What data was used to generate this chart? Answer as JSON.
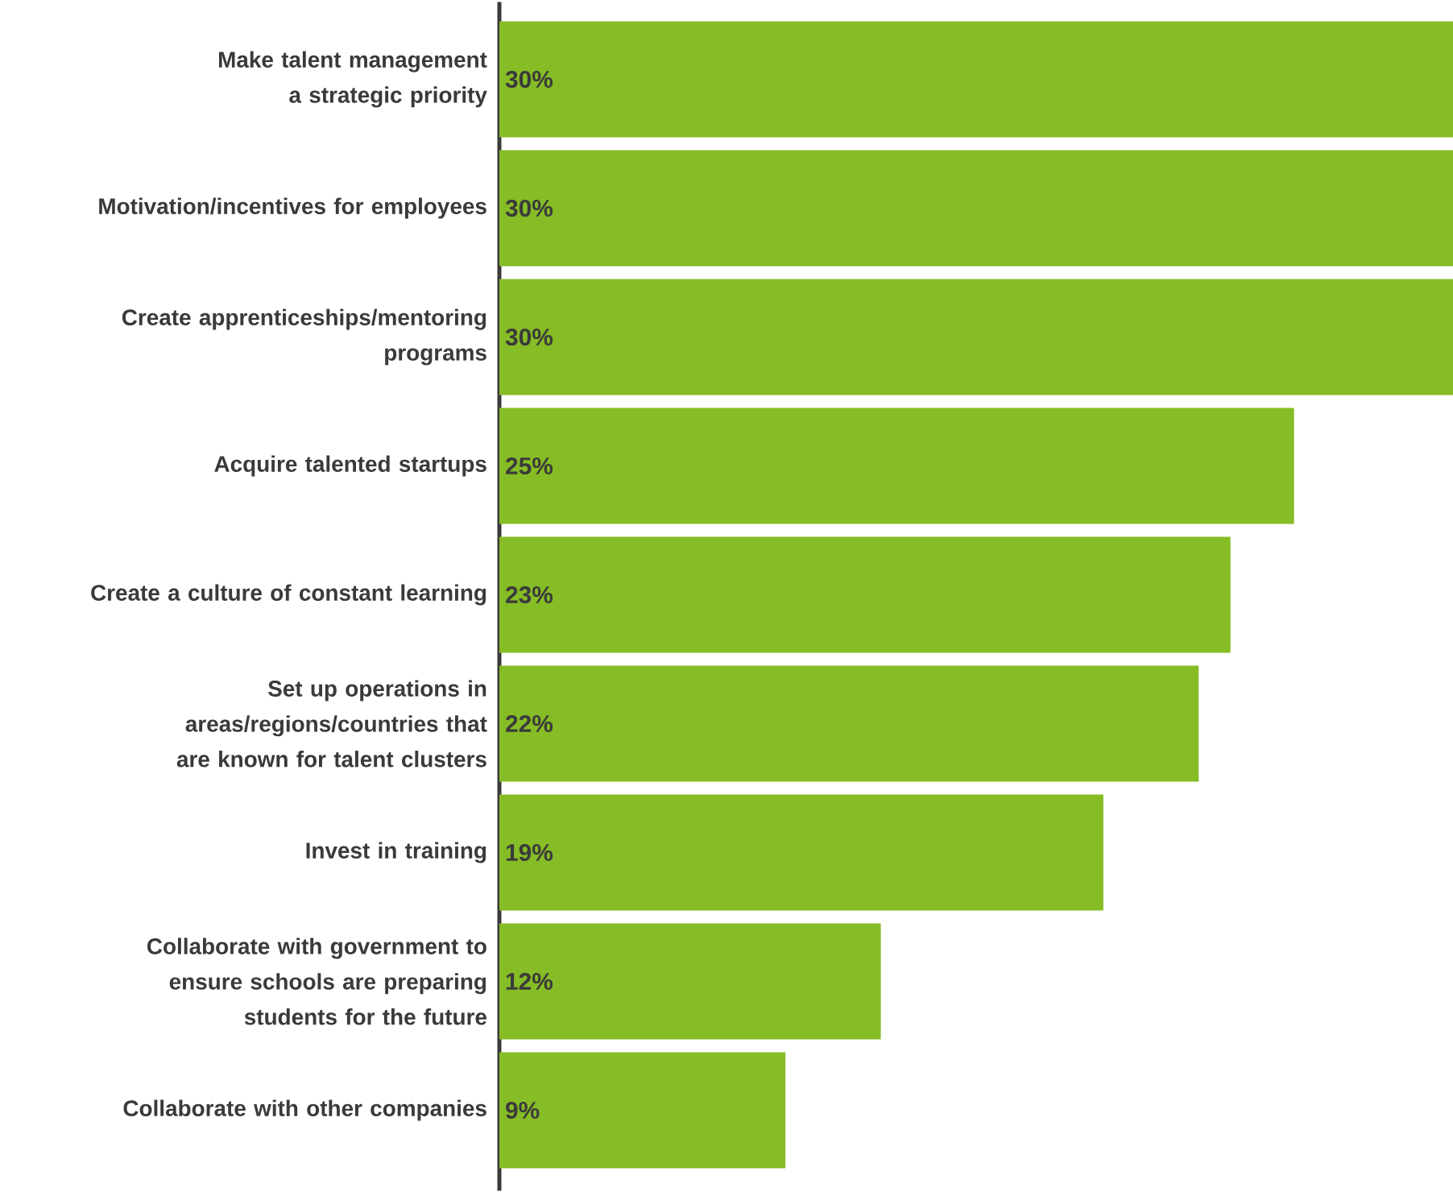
{
  "chart_data": {
    "type": "bar",
    "orientation": "horizontal",
    "color": "#86bc25",
    "categories": [
      "Make talent management a strategic priority",
      "Motivation/incentives for employees",
      "Create apprenticeships/mentoring programs",
      "Acquire talented startups",
      "Create a culture of constant learning",
      "Set up operations in areas/regions/countries that are known for talent clusters",
      "Invest in training",
      "Collaborate with government to ensure schools are preparing students for the future",
      "Collaborate with other companies"
    ],
    "values": [
      30,
      30,
      30,
      25,
      23,
      22,
      19,
      12,
      9
    ],
    "value_labels": [
      "30%",
      "30%",
      "30%",
      "25%",
      "23%",
      "22%",
      "19%",
      "12%",
      "9%"
    ]
  }
}
